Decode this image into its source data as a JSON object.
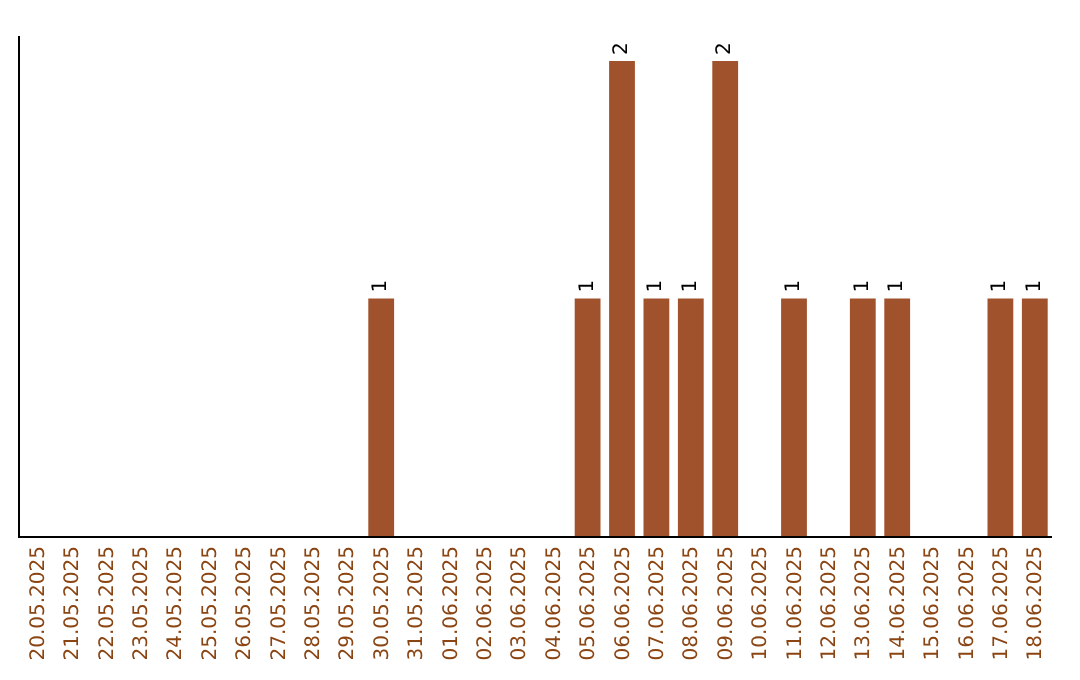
{
  "chart_data": {
    "type": "bar",
    "categories": [
      "20.05.2025",
      "21.05.2025",
      "22.05.2025",
      "23.05.2025",
      "24.05.2025",
      "25.05.2025",
      "26.05.2025",
      "27.05.2025",
      "28.05.2025",
      "29.05.2025",
      "30.05.2025",
      "31.05.2025",
      "01.06.2025",
      "02.06.2025",
      "03.06.2025",
      "04.06.2025",
      "05.06.2025",
      "06.06.2025",
      "07.06.2025",
      "08.06.2025",
      "09.06.2025",
      "10.06.2025",
      "11.06.2025",
      "12.06.2025",
      "13.06.2025",
      "14.06.2025",
      "15.06.2025",
      "16.06.2025",
      "17.06.2025",
      "18.06.2025"
    ],
    "values": [
      0,
      0,
      0,
      0,
      0,
      0,
      0,
      0,
      0,
      0,
      1,
      0,
      0,
      0,
      0,
      0,
      1,
      2,
      1,
      1,
      2,
      0,
      1,
      0,
      1,
      1,
      0,
      0,
      1,
      1
    ],
    "value_labels": [
      null,
      null,
      null,
      null,
      null,
      null,
      null,
      null,
      null,
      null,
      "1",
      null,
      null,
      null,
      null,
      null,
      "1",
      "2",
      "1",
      "1",
      "2",
      null,
      "1",
      null,
      "1",
      "1",
      null,
      null,
      "1",
      "1"
    ],
    "color": "#a0522d",
    "tick_labels": "x"
  }
}
